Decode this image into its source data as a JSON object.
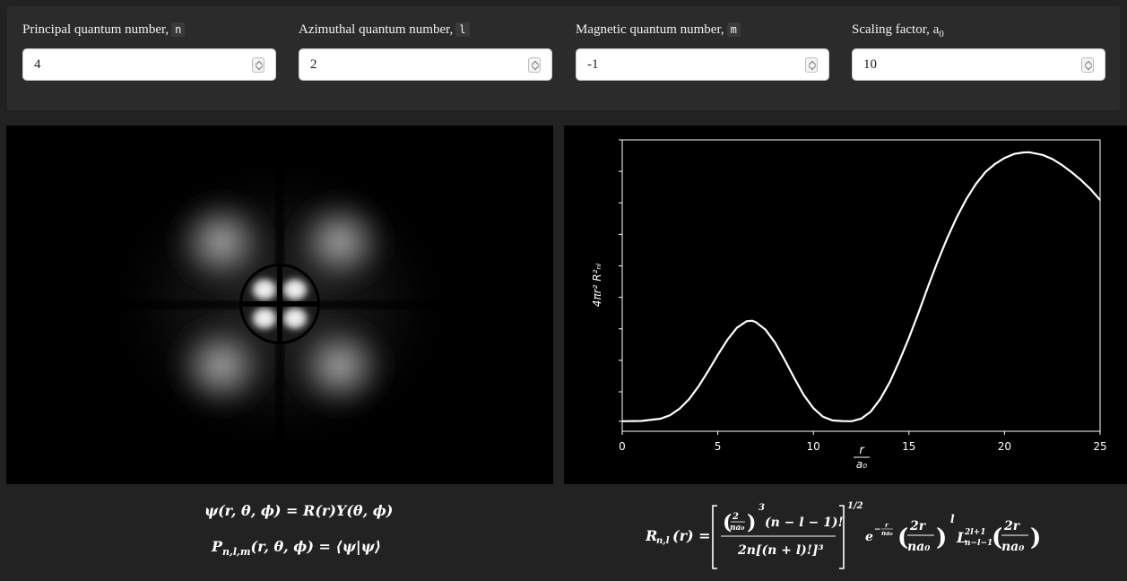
{
  "controls": [
    {
      "label": "Principal quantum number,",
      "symbol": "n",
      "value": "4"
    },
    {
      "label": "Azimuthal quantum number,",
      "symbol": "l",
      "value": "2"
    },
    {
      "label": "Magnetic quantum number,",
      "symbol": "m",
      "value": "-1"
    },
    {
      "label": "Scaling factor, a",
      "subscript": "0",
      "value": "10"
    }
  ],
  "equations": {
    "psi": "ψ(r, θ, ϕ) = R(r)Y(θ, ϕ)",
    "prob": "P",
    "prob_sub": "n,l,m",
    "prob_rest": "(r, θ, ϕ) = ⟨ψ|ψ⟩"
  },
  "radial_formula": {
    "lhs": "R",
    "lhs_sub": "n,l",
    "lhs_args": "(r) =",
    "frac_two": "2",
    "frac_na0": "na₀",
    "cube": "3",
    "factor": "(n − l − 1)!",
    "denominator": "2n[(n + l)!]³",
    "half": "1/2",
    "exp_base": "e",
    "exp_num": "r",
    "exp_den": "na₀",
    "two_r": "2r",
    "na0": "na₀",
    "pow_l": "l",
    "laguerre": "L",
    "lag_sup": "2l+1",
    "lag_sub": "n−l−1"
  },
  "chart_data": {
    "type": "line",
    "title": "",
    "xlabel_num": "r",
    "xlabel_den": "a₀",
    "ylabel": "4πr² R²ₙₗ",
    "xlim": [
      0,
      25
    ],
    "ylim": [
      -0.01,
      0.28
    ],
    "x_ticks": [
      "0",
      "5",
      "10",
      "15",
      "20",
      "25"
    ],
    "y_tick_count": 9,
    "line_color": "#ffffff",
    "series": [
      {
        "values_x": [
          0,
          1,
          2,
          2.5,
          3,
          3.5,
          4,
          4.5,
          5,
          5.5,
          6,
          6.5,
          6.8,
          7,
          7.5,
          8,
          8.5,
          9,
          9.5,
          10,
          10.5,
          11,
          11.5,
          12,
          12.5,
          13,
          13.5,
          14,
          14.5,
          15,
          15.5,
          16,
          16.5,
          17,
          17.5,
          18,
          18.5,
          19,
          19.5,
          20,
          20.5,
          21,
          21.3,
          22,
          22.5,
          23,
          23.5,
          24,
          24.5,
          25
        ],
        "values_y": [
          0,
          0.0003,
          0.0025,
          0.006,
          0.0125,
          0.022,
          0.035,
          0.05,
          0.066,
          0.081,
          0.093,
          0.0995,
          0.1,
          0.0985,
          0.091,
          0.078,
          0.061,
          0.043,
          0.026,
          0.013,
          0.0045,
          0.0008,
          0.0002,
          0,
          0.0025,
          0.0095,
          0.022,
          0.039,
          0.06,
          0.083,
          0.108,
          0.134,
          0.159,
          0.182,
          0.203,
          0.221,
          0.236,
          0.248,
          0.256,
          0.262,
          0.266,
          0.2675,
          0.2677,
          0.265,
          0.261,
          0.255,
          0.248,
          0.24,
          0.231,
          0.22
        ]
      }
    ]
  }
}
